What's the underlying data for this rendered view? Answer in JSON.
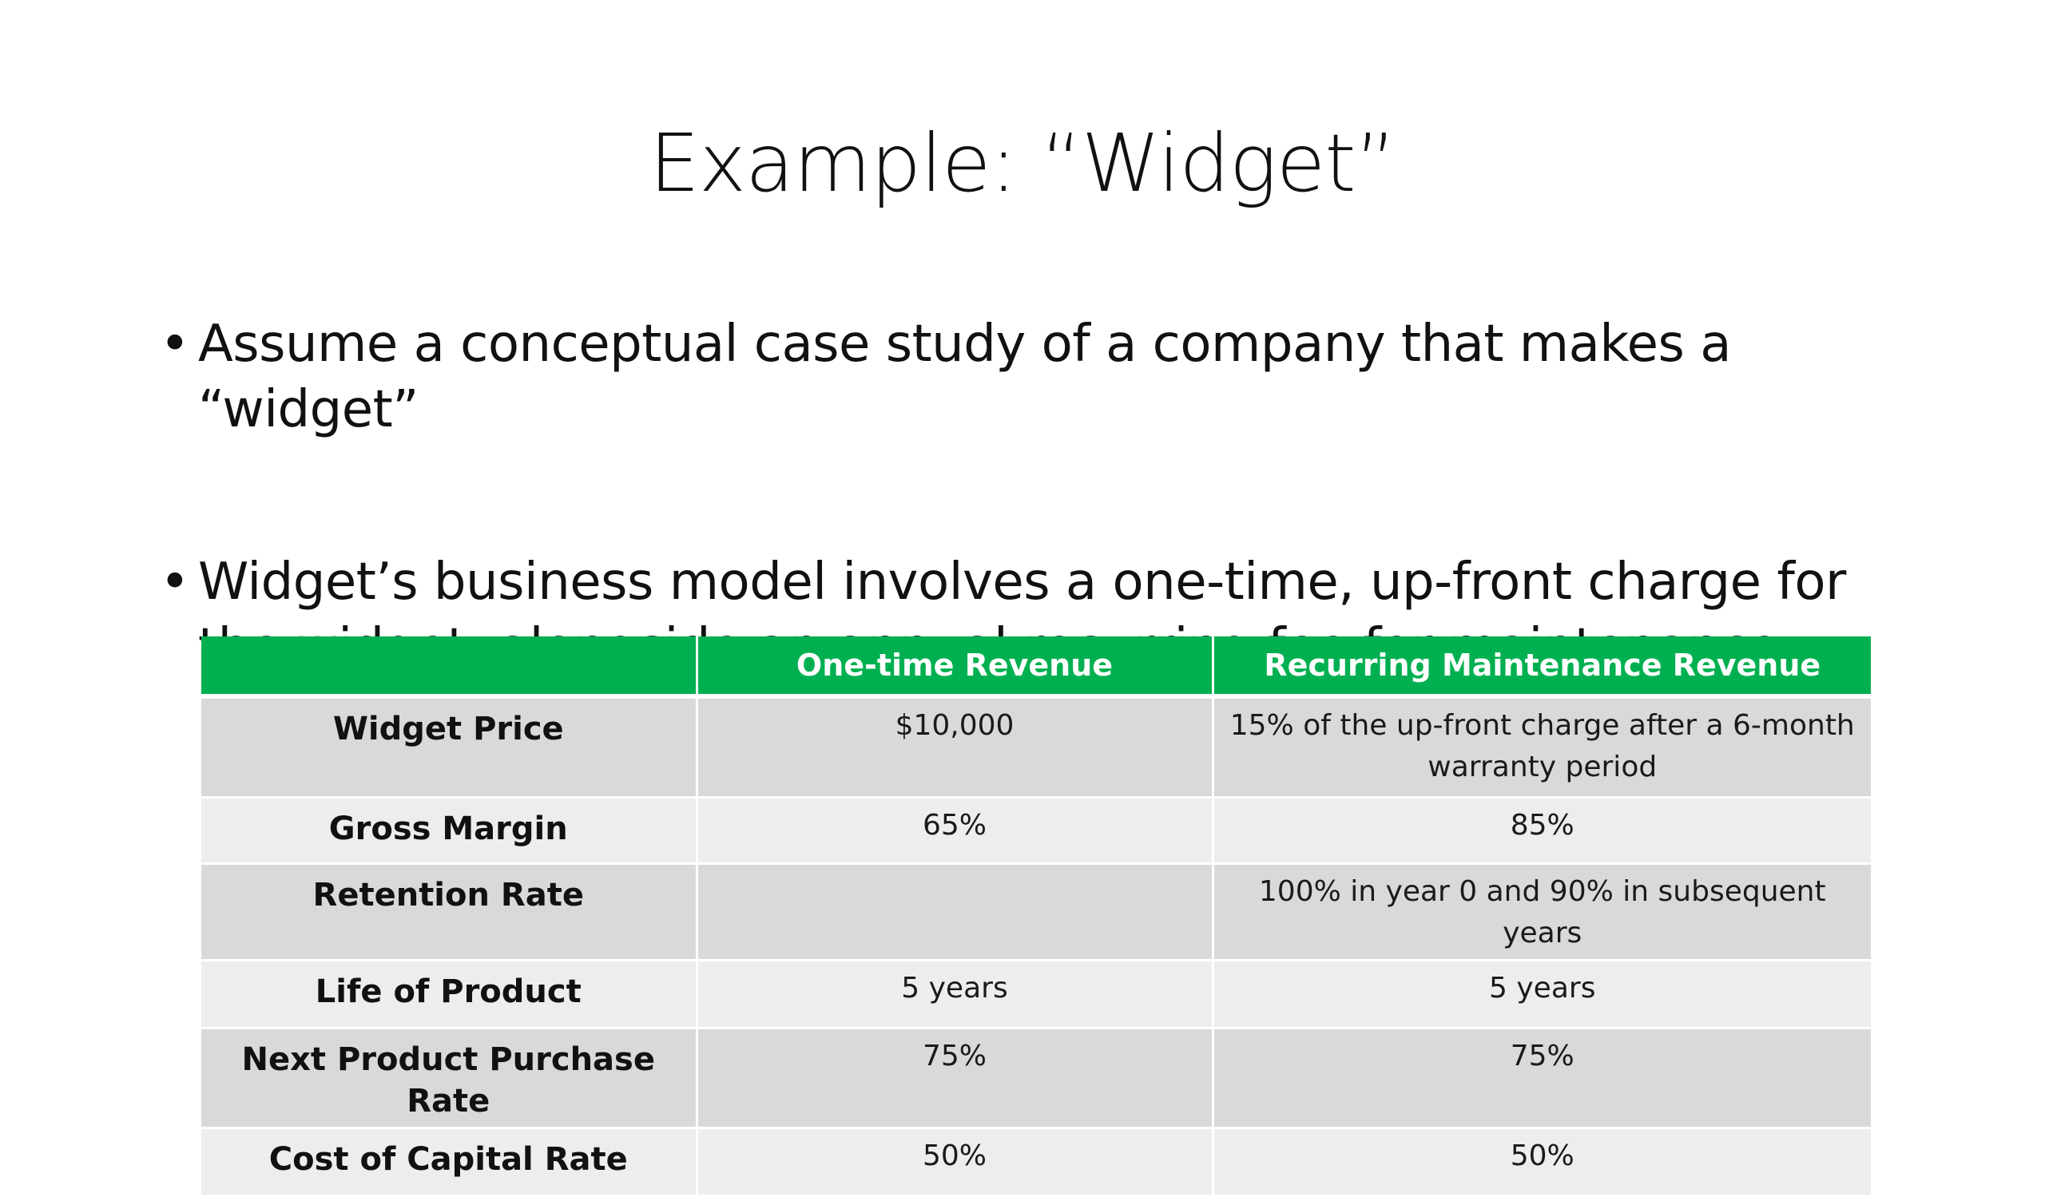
{
  "slide": {
    "title": "Example: “Widget”",
    "bullets": [
      "Assume a conceptual case study of a company that makes a “widget”",
      "Widget’s business model involves a one-time, up-front charge for the widget, alongside an annual recurring fee for maintenance"
    ],
    "bullet_symbol": "•"
  },
  "table": {
    "header_color": "#00b050",
    "headers": [
      "",
      "One-time Revenue",
      "Recurring Maintenance Revenue"
    ],
    "rows": [
      {
        "label": "Widget Price",
        "one_time": "$10,000",
        "recurring": "15% of the up-front charge after a 6-month warranty period"
      },
      {
        "label": "Gross Margin",
        "one_time": "65%",
        "recurring": "85%"
      },
      {
        "label": "Retention Rate",
        "one_time": "",
        "recurring": "100% in year 0 and 90% in subsequent years"
      },
      {
        "label": "Life of Product",
        "one_time": "5 years",
        "recurring": "5 years"
      },
      {
        "label": "Next Product Purchase Rate",
        "one_time": "75%",
        "recurring": "75%"
      },
      {
        "label": "Cost of Capital Rate",
        "one_time": "50%",
        "recurring": "50%"
      }
    ]
  }
}
